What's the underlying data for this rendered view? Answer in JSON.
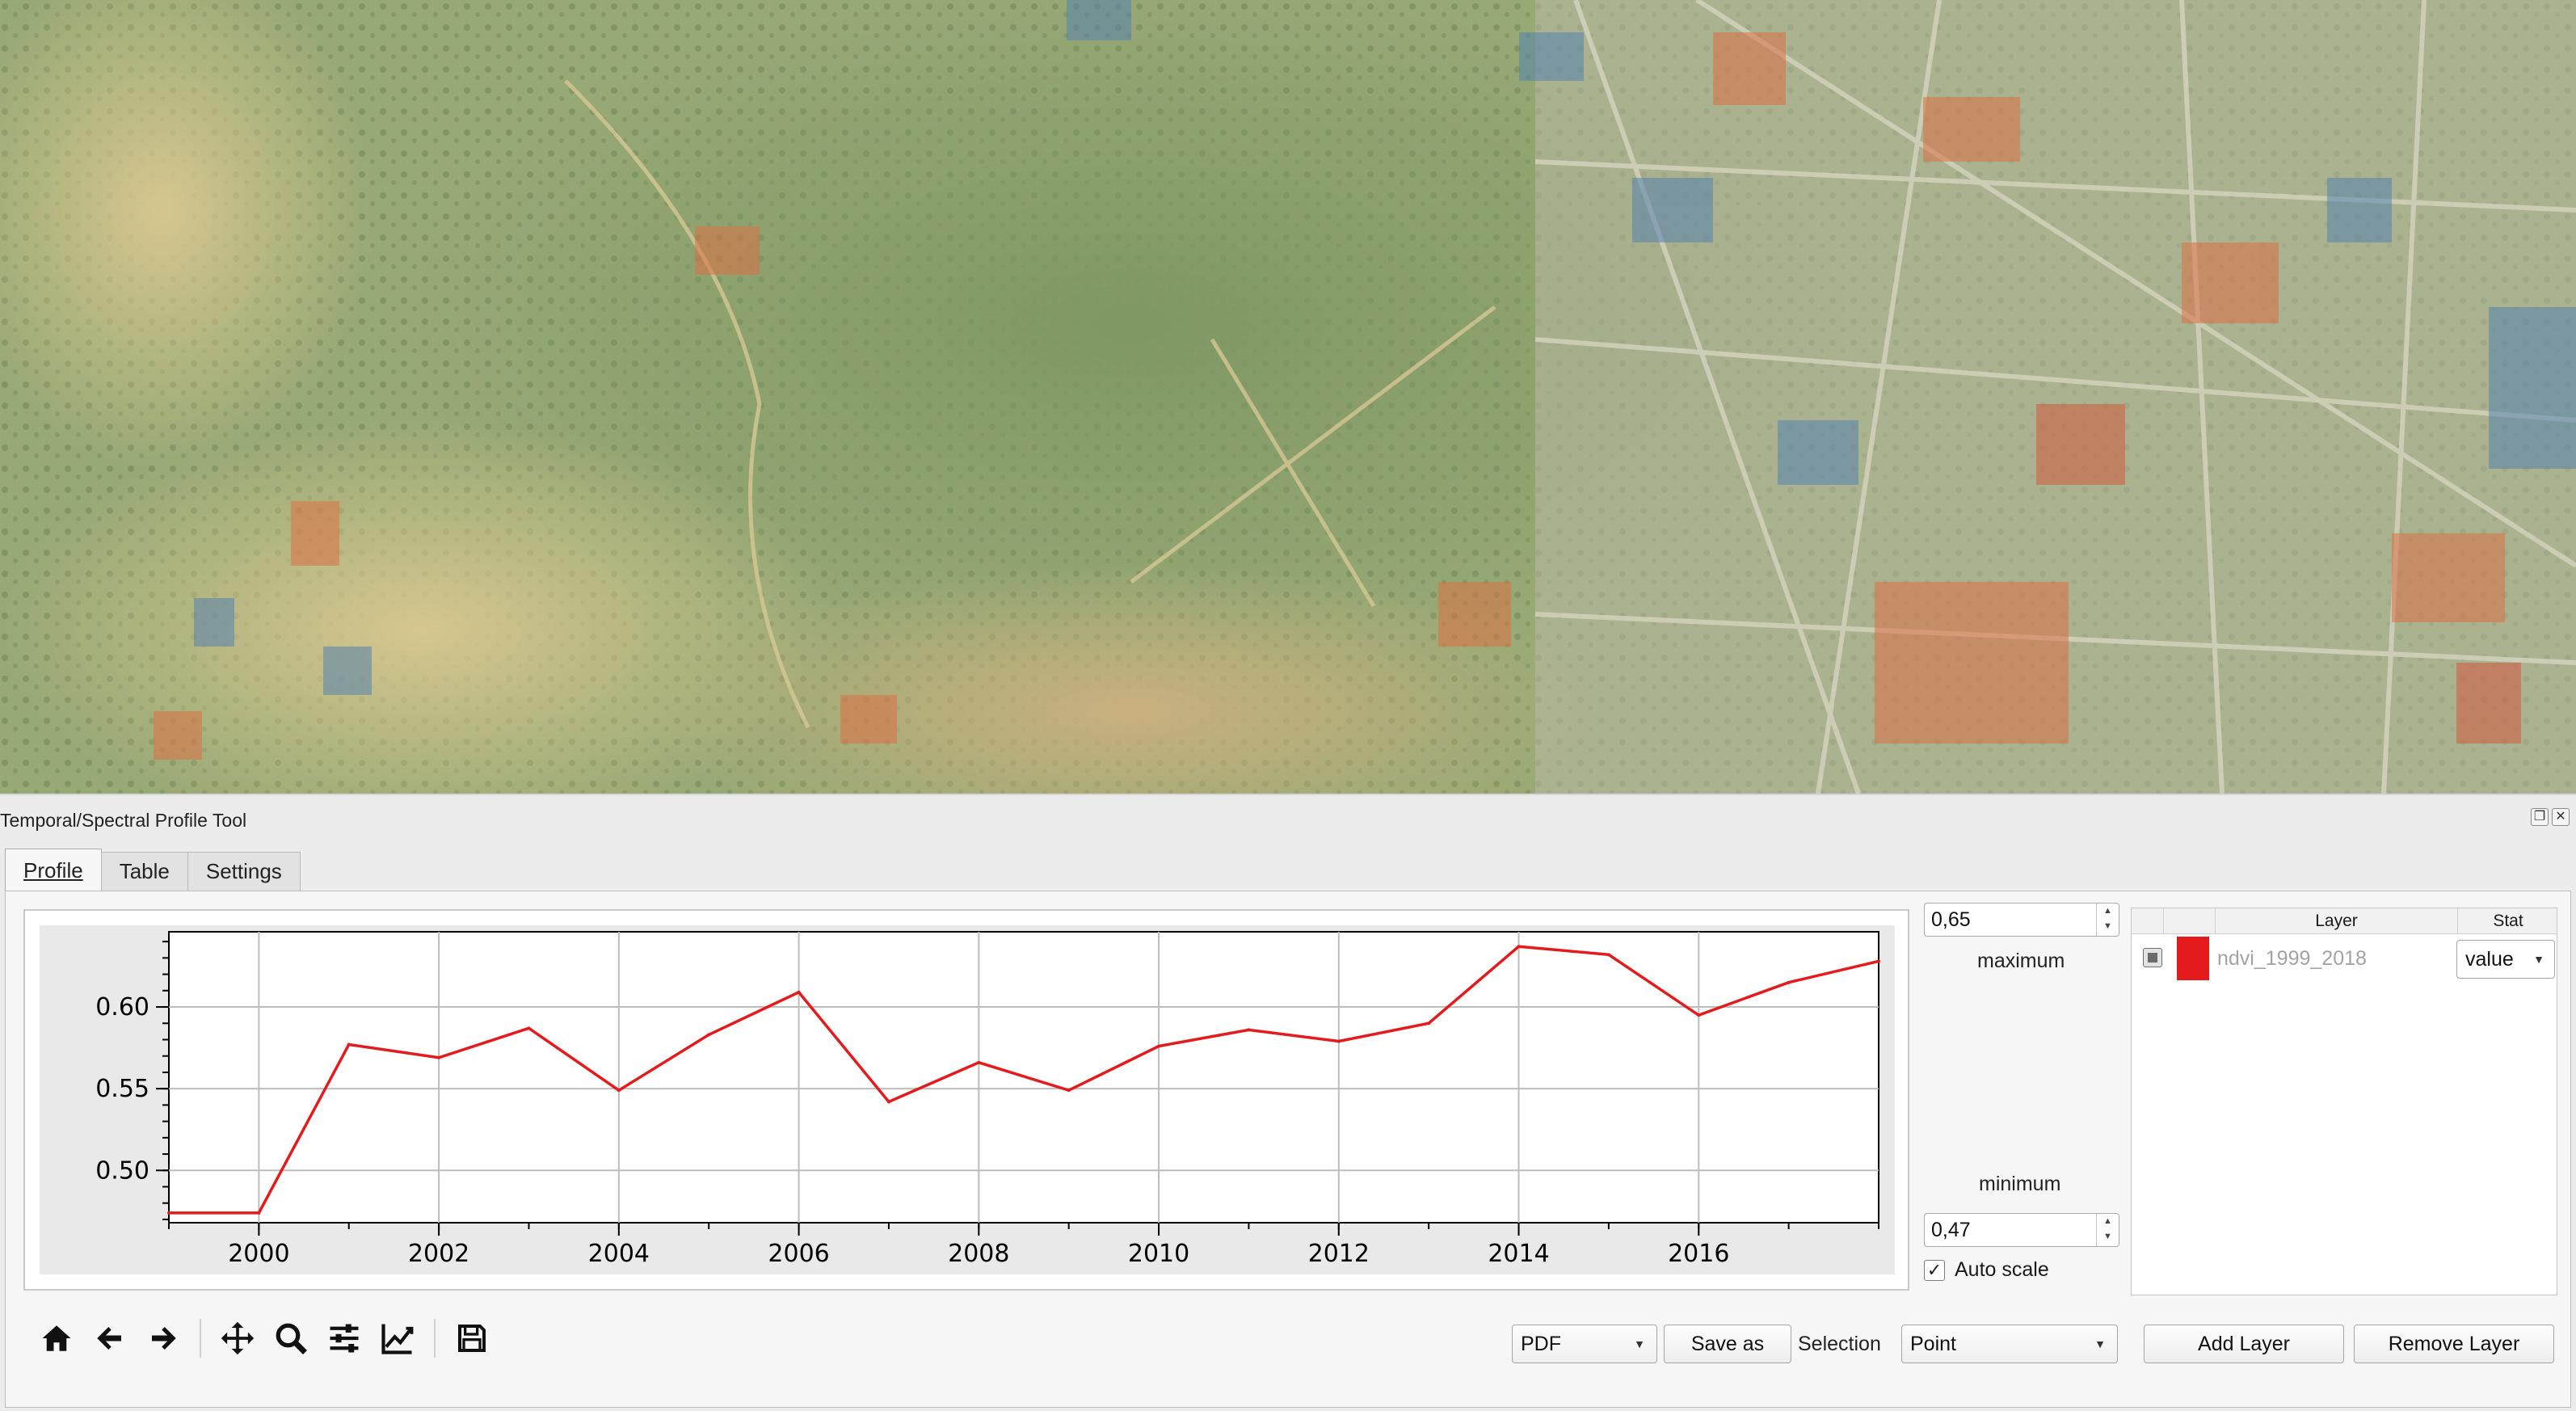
{
  "dock": {
    "title": "Temporal/Spectral Profile Tool",
    "buttons": [
      "float-icon",
      "close-icon"
    ]
  },
  "tabs": [
    {
      "label": "Profile",
      "active": true
    },
    {
      "label": "Table",
      "active": false
    },
    {
      "label": "Settings",
      "active": false
    }
  ],
  "scale": {
    "max_value": "0,65",
    "max_label": "maximum",
    "min_label": "minimum",
    "min_value": "0,47",
    "autoscale_label": "Auto scale",
    "autoscale_checked": true
  },
  "layer_table": {
    "headers": [
      "",
      "",
      "Layer",
      "Stat"
    ],
    "rows": [
      {
        "enabled": false,
        "color": "#e41a1c",
        "layer": "ndvi_1999_2018",
        "stat": "value"
      }
    ]
  },
  "toolbar": {
    "icons": [
      "home-icon",
      "back-arrow-icon",
      "forward-arrow-icon",
      "pan-icon",
      "zoom-icon",
      "configure-subplots-icon",
      "edit-axis-icon",
      "save-figure-icon"
    ]
  },
  "export": {
    "format": "PDF",
    "save_as_label": "Save as",
    "selection_label": "Selection",
    "selection_value": "Point",
    "add_layer_label": "Add Layer",
    "remove_layer_label": "Remove Layer"
  },
  "chart_data": {
    "type": "line",
    "x": [
      1999,
      2000,
      2001,
      2002,
      2003,
      2004,
      2005,
      2006,
      2007,
      2008,
      2009,
      2010,
      2011,
      2012,
      2013,
      2014,
      2015,
      2016,
      2017,
      2018
    ],
    "series": [
      {
        "values": [
          0.474,
          0.474,
          0.577,
          0.569,
          0.587,
          0.549,
          0.583,
          0.609,
          0.542,
          0.566,
          0.549,
          0.576,
          0.586,
          0.579,
          0.59,
          0.637,
          0.632,
          0.595,
          0.615,
          0.628
        ],
        "color": "#e41a1c"
      }
    ],
    "xticks": [
      2000,
      2002,
      2004,
      2006,
      2008,
      2010,
      2012,
      2014,
      2016
    ],
    "yticks": [
      0.5,
      0.55,
      0.6
    ],
    "ytick_labels": [
      "0.50",
      "0.55",
      "0.60"
    ],
    "xlim": [
      1999,
      2018
    ],
    "ylim": [
      0.468,
      0.646
    ],
    "grid": true,
    "title": "",
    "xlabel": "",
    "ylabel": ""
  }
}
